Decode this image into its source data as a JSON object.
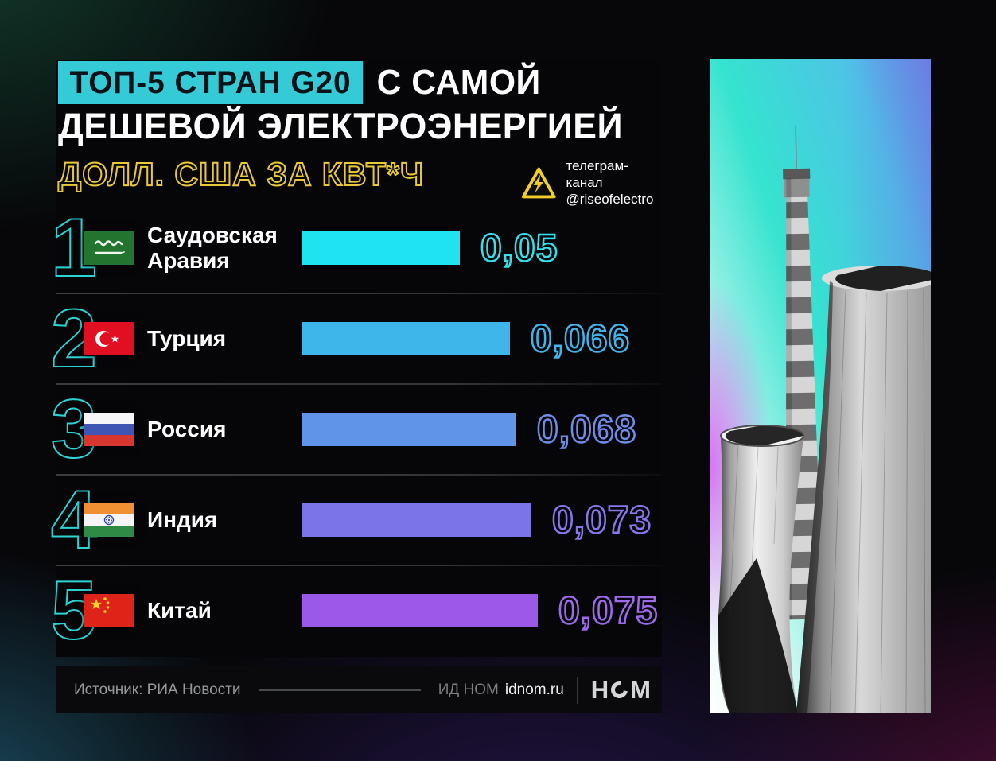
{
  "title": {
    "highlight": "ТОП-5 СТРАН G20",
    "suffix": "С САМОЙ",
    "line2": "ДЕШЕВОЙ ЭЛЕКТРОЭНЕРГИЕЙ"
  },
  "unit_label": "ДОЛЛ. США ЗА КВТ*Ч",
  "telegram": {
    "line1": "телеграм-канал",
    "line2": "@riseofelectro",
    "icon": "high-voltage-warning-triangle"
  },
  "ranks": [
    "1",
    "2",
    "3",
    "4",
    "5"
  ],
  "chart_data": {
    "type": "bar",
    "orientation": "horizontal",
    "title": "ТОП-5 СТРАН G20 С САМОЙ ДЕШЕВОЙ ЭЛЕКТРОЭНЕРГИЕЙ",
    "unit": "долл. США за кВт*ч",
    "categories": [
      "Саудовская Аравия",
      "Турция",
      "Россия",
      "Индия",
      "Китай"
    ],
    "values": [
      0.05,
      0.066,
      0.068,
      0.073,
      0.075
    ],
    "value_labels": [
      "0,05",
      "0,066",
      "0,068",
      "0,073",
      "0,075"
    ],
    "bar_colors": [
      "#1fe3f0",
      "#3fb6ea",
      "#5f94e8",
      "#7b74e8",
      "#9b58e9"
    ],
    "value_colors": [
      "#36dfe9",
      "#43b4e9",
      "#6f8ce8",
      "#8577e8",
      "#9e6aec"
    ],
    "flags": [
      "saudi-arabia",
      "turkey",
      "russia",
      "india",
      "china"
    ],
    "xlim": [
      0,
      0.08
    ],
    "grid": false,
    "legend": false
  },
  "footer": {
    "source": "Источник: РИА Новости",
    "publisher": "ИД НОМ",
    "site": "idnom.ru",
    "logo_name": "НОМ",
    "logo_left": "Н",
    "logo_right": "М"
  },
  "colors": {
    "title_box": "#35cbd6",
    "title_box_text": "#0c1318",
    "rank_outline": "#2bd3d3",
    "subtitle_yellow": "#e9c93a",
    "card_background": "#060608"
  }
}
